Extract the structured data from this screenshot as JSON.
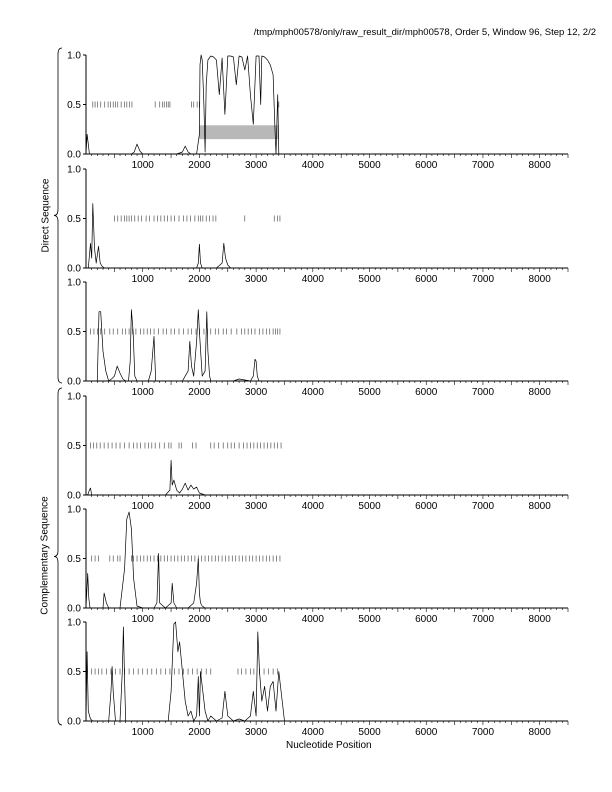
{
  "header": {
    "title": "/tmp/mph00578/only/raw_result_dir/mph00578, Order 5, Window 96, Step 12, 2/2"
  },
  "groups": {
    "direct_label": "Direct Sequence",
    "complementary_label": "Complementary Sequence"
  },
  "colors": {
    "line": "#000000",
    "axis": "#000000",
    "tick_marks": "#555555",
    "highlight_box": "#b8b8b8"
  },
  "chart_data": [
    {
      "type": "line",
      "panel": 1,
      "group": "Direct Sequence",
      "xlim": [
        0,
        8500
      ],
      "ylim": [
        0,
        1.0
      ],
      "xticks": [
        1000,
        2000,
        3000,
        4000,
        5000,
        6000,
        7000,
        8000
      ],
      "yticks": [
        "0.0",
        "0.5",
        "1.0"
      ],
      "x": [
        0,
        20,
        40,
        60,
        80,
        120,
        200,
        400,
        600,
        800,
        850,
        900,
        950,
        1000,
        1100,
        1300,
        1500,
        1600,
        1700,
        1750,
        1800,
        1850,
        1900,
        1950,
        2000,
        2010,
        2030,
        2050,
        2080,
        2100,
        2120,
        2150,
        2200,
        2250,
        2300,
        2350,
        2400,
        2450,
        2500,
        2550,
        2600,
        2650,
        2700,
        2750,
        2800,
        2850,
        2900,
        2950,
        3000,
        3050,
        3080,
        3100,
        3150,
        3200,
        3250,
        3300,
        3330,
        3350,
        3380,
        3400,
        3450,
        3500,
        3700,
        4000
      ],
      "y": [
        0.0,
        0.2,
        0.1,
        0.0,
        0.0,
        0.0,
        0.0,
        0.0,
        0.0,
        0.0,
        0.02,
        0.1,
        0.03,
        0.0,
        0.0,
        0.0,
        0.0,
        0.0,
        0.02,
        0.08,
        0.02,
        0.0,
        0.0,
        0.0,
        0.2,
        0.9,
        1.0,
        0.95,
        0.5,
        0.02,
        0.7,
        0.95,
        0.99,
        0.98,
        0.95,
        0.6,
        0.97,
        0.4,
        0.99,
        0.99,
        0.98,
        0.7,
        0.99,
        0.98,
        0.85,
        0.99,
        0.6,
        0.3,
        0.99,
        0.99,
        0.5,
        0.99,
        0.98,
        0.95,
        0.9,
        0.8,
        0.3,
        0.0,
        0.6,
        0.0,
        0.0,
        0.0,
        0.0,
        0.0
      ],
      "ticks_at_half": [
        120,
        160,
        200,
        260,
        330,
        390,
        430,
        480,
        520,
        560,
        620,
        680,
        720,
        770,
        810,
        1220,
        1300,
        1350,
        1380,
        1420,
        1450,
        1480,
        1860,
        1900,
        1960,
        2000,
        3400
      ],
      "highlight": {
        "x_start": 2000,
        "x_end": 3400,
        "y_low": 0.15,
        "y_high": 0.29
      }
    },
    {
      "type": "line",
      "panel": 2,
      "group": "Direct Sequence",
      "xlim": [
        0,
        8500
      ],
      "ylim": [
        0,
        1.0
      ],
      "xticks": [
        1000,
        2000,
        3000,
        4000,
        5000,
        6000,
        7000,
        8000
      ],
      "yticks": [
        "0.0",
        "0.5",
        "1.0"
      ],
      "x": [
        0,
        40,
        80,
        100,
        120,
        150,
        180,
        220,
        250,
        280,
        320,
        400,
        600,
        1000,
        1500,
        1950,
        1980,
        2000,
        2020,
        2050,
        2100,
        2300,
        2400,
        2430,
        2460,
        2500,
        2550,
        2600,
        2700,
        3000,
        3500,
        4000
      ],
      "y": [
        0.0,
        0.0,
        0.25,
        0.1,
        0.65,
        0.2,
        0.05,
        0.22,
        0.05,
        0.02,
        0.0,
        0.0,
        0.0,
        0.0,
        0.0,
        0.0,
        0.05,
        0.24,
        0.05,
        0.0,
        0.0,
        0.0,
        0.05,
        0.25,
        0.1,
        0.03,
        0.0,
        0.0,
        0.0,
        0.0,
        0.0,
        0.0
      ],
      "ticks_at_half": [
        500,
        560,
        620,
        680,
        720,
        760,
        800,
        860,
        920,
        980,
        1060,
        1120,
        1200,
        1260,
        1320,
        1380,
        1440,
        1500,
        1560,
        1640,
        1720,
        1780,
        1840,
        1920,
        1980,
        2020,
        2060,
        2120,
        2180,
        2240,
        2290,
        2800,
        3320,
        3380,
        3420
      ]
    },
    {
      "type": "line",
      "panel": 3,
      "group": "Direct Sequence",
      "xlim": [
        0,
        8500
      ],
      "ylim": [
        0,
        1.0
      ],
      "xticks": [
        1000,
        2000,
        3000,
        4000,
        5000,
        6000,
        7000,
        8000
      ],
      "yticks": [
        "0.0",
        "0.5",
        "1.0"
      ],
      "x": [
        0,
        100,
        200,
        230,
        260,
        300,
        350,
        400,
        450,
        500,
        550,
        600,
        650,
        700,
        750,
        780,
        800,
        830,
        860,
        900,
        1000,
        1100,
        1150,
        1200,
        1230,
        1300,
        1500,
        1700,
        1750,
        1800,
        1830,
        1860,
        1900,
        1950,
        1980,
        2000,
        2050,
        2100,
        2130,
        2150,
        2180,
        2200,
        2300,
        2600,
        2700,
        2900,
        2950,
        2980,
        3000,
        3020,
        3050,
        3200,
        3500,
        4000
      ],
      "y": [
        0.0,
        0.0,
        0.0,
        0.7,
        0.7,
        0.3,
        0.1,
        0.0,
        0.02,
        0.05,
        0.15,
        0.08,
        0.02,
        0.0,
        0.0,
        0.2,
        0.72,
        0.5,
        0.05,
        0.0,
        0.0,
        0.0,
        0.1,
        0.45,
        0.0,
        0.0,
        0.0,
        0.0,
        0.05,
        0.1,
        0.4,
        0.15,
        0.05,
        0.4,
        0.72,
        0.5,
        0.05,
        0.1,
        0.7,
        0.3,
        0.05,
        0.0,
        0.0,
        0.0,
        0.02,
        0.0,
        0.05,
        0.22,
        0.2,
        0.05,
        0.0,
        0.0,
        0.0,
        0.0
      ],
      "ticks_at_half": [
        80,
        140,
        200,
        260,
        330,
        420,
        480,
        560,
        640,
        700,
        760,
        820,
        880,
        960,
        1020,
        1080,
        1140,
        1200,
        1280,
        1360,
        1420,
        1500,
        1560,
        1640,
        1720,
        1800,
        1860,
        1940,
        2000,
        2080,
        2140,
        2200,
        2280,
        2340,
        2420,
        2480,
        2560,
        2660,
        2740,
        2800,
        2860,
        2920,
        2980,
        3060,
        3120,
        3180,
        3240,
        3300,
        3340,
        3380,
        3420
      ]
    },
    {
      "type": "line",
      "panel": 4,
      "group": "Complementary Sequence",
      "xlim": [
        0,
        8500
      ],
      "ylim": [
        0,
        1.0
      ],
      "xticks": [
        1000,
        2000,
        3000,
        4000,
        5000,
        6000,
        7000,
        8000
      ],
      "yticks": [
        "0.0",
        "0.5",
        "1.0"
      ],
      "x": [
        0,
        30,
        60,
        80,
        100,
        200,
        600,
        1000,
        1400,
        1480,
        1500,
        1520,
        1550,
        1600,
        1650,
        1700,
        1750,
        1800,
        1850,
        1900,
        1950,
        2000,
        2100,
        3000,
        4000
      ],
      "y": [
        0.0,
        0.0,
        0.05,
        0.07,
        0.0,
        0.0,
        0.0,
        0.0,
        0.0,
        0.05,
        0.35,
        0.1,
        0.15,
        0.05,
        0.02,
        0.06,
        0.12,
        0.05,
        0.1,
        0.06,
        0.08,
        0.02,
        0.0,
        0.0,
        0.0
      ],
      "ticks_at_half": [
        80,
        130,
        190,
        250,
        320,
        390,
        460,
        530,
        600,
        680,
        760,
        840,
        900,
        960,
        1040,
        1100,
        1160,
        1220,
        1300,
        1380,
        1460,
        1500,
        1640,
        1680,
        1880,
        1940,
        2200,
        2260,
        2340,
        2420,
        2500,
        2560,
        2620,
        2700,
        2780,
        2840,
        2900,
        2960,
        3020,
        3080,
        3140,
        3200,
        3260,
        3320,
        3380,
        3440
      ]
    },
    {
      "type": "line",
      "panel": 5,
      "group": "Complementary Sequence",
      "xlim": [
        0,
        8500
      ],
      "ylim": [
        0,
        1.0
      ],
      "xticks": [
        1000,
        2000,
        3000,
        4000,
        5000,
        6000,
        7000,
        8000
      ],
      "yticks": [
        "0.0",
        "0.5",
        "1.0"
      ],
      "x": [
        0,
        30,
        50,
        70,
        100,
        200,
        300,
        320,
        360,
        400,
        600,
        680,
        720,
        760,
        800,
        840,
        900,
        1000,
        1200,
        1250,
        1280,
        1300,
        1400,
        1500,
        1520,
        1550,
        1600,
        1800,
        1900,
        1950,
        1980,
        2000,
        2020,
        2050,
        2100,
        2500,
        3000,
        4000
      ],
      "y": [
        0.0,
        0.35,
        0.1,
        0.0,
        0.0,
        0.0,
        0.0,
        0.15,
        0.05,
        0.0,
        0.0,
        0.4,
        0.9,
        0.97,
        0.8,
        0.3,
        0.02,
        0.0,
        0.0,
        0.05,
        0.55,
        0.05,
        0.0,
        0.05,
        0.25,
        0.05,
        0.0,
        0.0,
        0.05,
        0.25,
        0.5,
        0.15,
        0.05,
        0.02,
        0.0,
        0.0,
        0.0,
        0.0
      ],
      "ticks_at_half": [
        100,
        160,
        220,
        420,
        480,
        560,
        600,
        800,
        840,
        900,
        960,
        1020,
        1080,
        1140,
        1200,
        1260,
        1320,
        1380,
        1440,
        1500,
        1560,
        1620,
        1680,
        1740,
        1800,
        1860,
        1920,
        1980,
        2040,
        2100,
        2160,
        2220,
        2280,
        2340,
        2400,
        2460,
        2520,
        2580,
        2640,
        2700,
        2760,
        2820,
        2880,
        2940,
        3000,
        3060,
        3120,
        3180,
        3240,
        3300,
        3360,
        3420
      ]
    },
    {
      "type": "line",
      "panel": 6,
      "group": "Complementary Sequence",
      "xlim": [
        0,
        8500
      ],
      "ylim": [
        0,
        1.0
      ],
      "xticks": [
        1000,
        2000,
        3000,
        4000,
        5000,
        6000,
        7000,
        8000
      ],
      "yticks": [
        "0.0",
        "0.5",
        "1.0"
      ],
      "x": [
        0,
        20,
        40,
        80,
        120,
        200,
        300,
        400,
        440,
        460,
        480,
        520,
        600,
        640,
        660,
        680,
        700,
        760,
        900,
        1100,
        1300,
        1450,
        1500,
        1550,
        1580,
        1620,
        1650,
        1700,
        1750,
        1800,
        1850,
        1900,
        1950,
        1980,
        2000,
        2020,
        2100,
        2150,
        2200,
        2300,
        2400,
        2450,
        2500,
        2600,
        2700,
        2800,
        2900,
        2950,
        3000,
        3030,
        3060,
        3100,
        3150,
        3200,
        3250,
        3300,
        3350,
        3400,
        3500,
        4000
      ],
      "y": [
        0.0,
        0.7,
        0.1,
        0.02,
        0.0,
        0.0,
        0.0,
        0.0,
        0.3,
        0.55,
        0.3,
        0.0,
        0.0,
        0.5,
        0.95,
        0.4,
        0.0,
        0.0,
        0.0,
        0.0,
        0.0,
        0.0,
        0.3,
        0.98,
        1.0,
        0.7,
        0.8,
        0.5,
        0.2,
        0.05,
        0.1,
        0.0,
        0.05,
        0.45,
        0.05,
        0.5,
        0.1,
        0.0,
        0.05,
        0.0,
        0.03,
        0.3,
        0.05,
        0.0,
        0.02,
        0.0,
        0.05,
        0.3,
        0.05,
        0.9,
        0.5,
        0.2,
        0.35,
        0.1,
        0.35,
        0.4,
        0.1,
        0.5,
        0.0,
        0.0
      ],
      "ticks_at_half": [
        100,
        160,
        220,
        280,
        360,
        440,
        520,
        600,
        680,
        760,
        840,
        920,
        1000,
        1080,
        1160,
        1240,
        1320,
        1400,
        1480,
        1560,
        1640,
        1720,
        1800,
        1880,
        1960,
        2040,
        2120,
        2200,
        2680,
        2740,
        2820,
        2900,
        2960,
        3060,
        3140,
        3220,
        3300,
        3380
      ]
    }
  ],
  "axis": {
    "xlabel": "Nucleotide Position"
  }
}
